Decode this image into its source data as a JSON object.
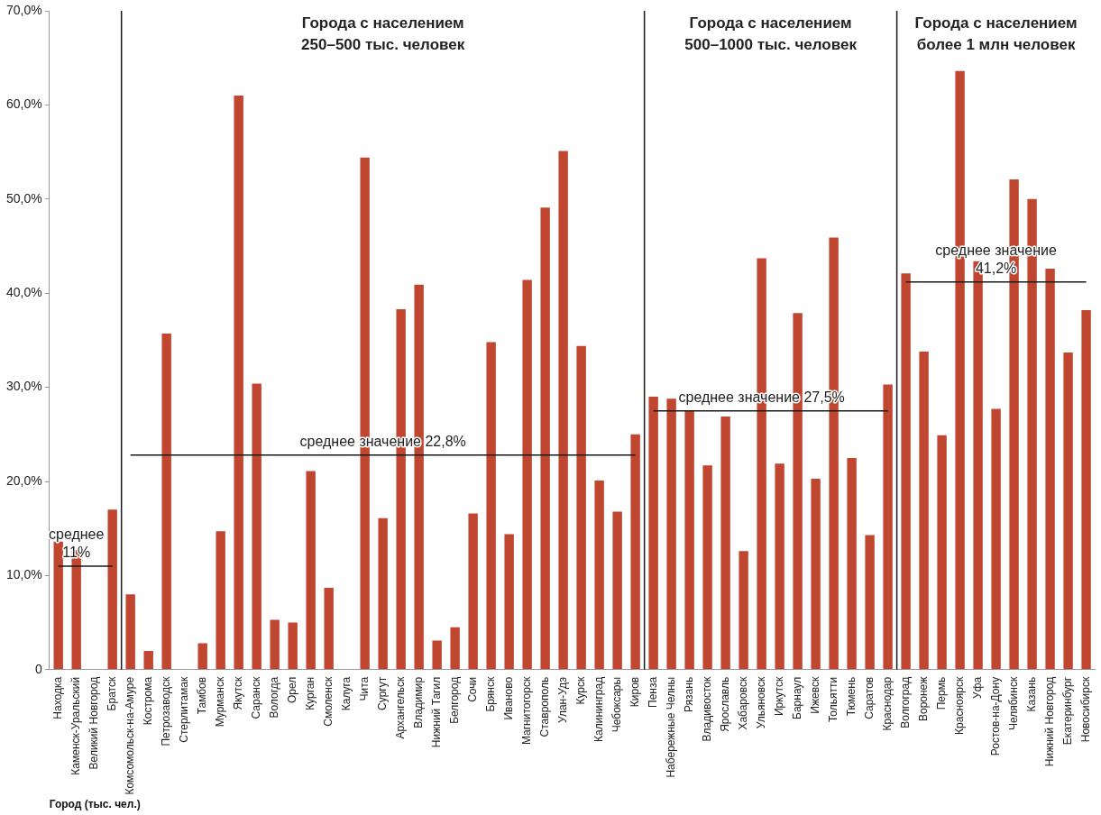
{
  "chart_data": {
    "type": "bar",
    "xlabel": "Город (тыс. чел.)",
    "categories": [
      "Находка",
      "Каменск-Уральский",
      "Великий Новгород",
      "Братск",
      "Комсомольск-на-Амуре",
      "Кострома",
      "Петрозаводск",
      "Стерлитамак",
      "Тамбов",
      "Мурманск",
      "Якутск",
      "Саранск",
      "Вологда",
      "Орел",
      "Курган",
      "Смоленск",
      "Калуга",
      "Чита",
      "Сургут",
      "Архангельск",
      "Владимир",
      "Нижний Тагил",
      "Белгород",
      "Сочи",
      "Брянск",
      "Иваново",
      "Магнитогорск",
      "Ставрополь",
      "Улан-Удэ",
      "Курск",
      "Калининград",
      "Чебоксары",
      "Киров",
      "Пенза",
      "Набережные Челны",
      "Рязань",
      "Владивосток",
      "Ярославль",
      "Хабаровск",
      "Ульяновск",
      "Иркутск",
      "Барнаул",
      "Ижевск",
      "Тольятти",
      "Тюмень",
      "Саратов",
      "Краснодар",
      "Волгоград",
      "Воронеж",
      "Пермь",
      "Красноярск",
      "Уфа",
      "Ростов-на-Дону",
      "Челябинск",
      "Казань",
      "Нижний Новгород",
      "Екатеринбург",
      "Новосибирск"
    ],
    "series": [
      {
        "color": "#c0462f",
        "values": [
          13.6,
          12.7,
          0,
          17.0,
          8.0,
          2.0,
          35.7,
          0,
          2.8,
          14.7,
          61.0,
          30.4,
          5.3,
          5.0,
          21.1,
          8.7,
          0,
          54.4,
          16.1,
          38.3,
          40.9,
          3.1,
          4.5,
          16.6,
          34.8,
          14.4,
          41.4,
          49.1,
          55.1,
          34.4,
          20.1,
          16.8,
          25.0,
          29.0,
          28.8,
          27.5,
          21.7,
          26.9,
          12.6,
          43.7,
          21.9,
          37.9,
          20.3,
          45.9,
          22.5,
          14.3,
          30.3,
          42.1,
          33.8,
          24.9,
          63.6,
          43.4,
          27.7,
          52.1,
          50.0,
          42.6,
          33.7,
          38.2
        ]
      },
      {
        "type": "line",
        "color": "#1a1a1a",
        "values": [
          11,
          11,
          11,
          11,
          null,
          null,
          null,
          null,
          null,
          null,
          null,
          null,
          null,
          null,
          null,
          null,
          null,
          null,
          null,
          null,
          null,
          null,
          null,
          null,
          null,
          null,
          null,
          null,
          null,
          null,
          null,
          null,
          null,
          null,
          null,
          null,
          null,
          null,
          null,
          null,
          null,
          null,
          null,
          null,
          null,
          null,
          null,
          null,
          null,
          null,
          null,
          null,
          null,
          null,
          null,
          null,
          null,
          null
        ]
      },
      {
        "type": "line",
        "color": "#1a1a1a",
        "values": [
          null,
          null,
          null,
          null,
          22.8,
          22.8,
          22.8,
          22.8,
          22.8,
          22.8,
          22.8,
          22.8,
          22.8,
          22.8,
          22.8,
          22.8,
          22.8,
          22.8,
          22.8,
          22.8,
          22.8,
          22.8,
          22.8,
          22.8,
          22.8,
          22.8,
          22.8,
          22.8,
          22.8,
          22.8,
          22.8,
          22.8,
          22.8,
          null,
          null,
          null,
          null,
          null,
          null,
          null,
          null,
          null,
          null,
          null,
          null,
          null,
          null,
          null,
          null,
          null,
          null,
          null,
          null,
          null,
          null,
          null,
          null,
          null
        ]
      },
      {
        "type": "line",
        "color": "#1a1a1a",
        "values": [
          null,
          null,
          null,
          null,
          null,
          null,
          null,
          null,
          null,
          null,
          null,
          null,
          null,
          null,
          null,
          null,
          null,
          null,
          null,
          null,
          null,
          null,
          null,
          null,
          null,
          null,
          null,
          null,
          null,
          null,
          null,
          null,
          null,
          27.5,
          27.5,
          27.5,
          27.5,
          27.5,
          27.5,
          27.5,
          27.5,
          27.5,
          27.5,
          27.5,
          27.5,
          27.5,
          27.5,
          null,
          null,
          null,
          null,
          null,
          null,
          null,
          null,
          null,
          null,
          null
        ]
      },
      {
        "type": "line",
        "color": "#1a1a1a",
        "values": [
          null,
          null,
          null,
          null,
          null,
          null,
          null,
          null,
          null,
          null,
          null,
          null,
          null,
          null,
          null,
          null,
          null,
          null,
          null,
          null,
          null,
          null,
          null,
          null,
          null,
          null,
          null,
          null,
          null,
          null,
          null,
          null,
          null,
          null,
          null,
          null,
          null,
          null,
          null,
          null,
          null,
          null,
          null,
          null,
          null,
          null,
          null,
          41.2,
          41.2,
          41.2,
          41.2,
          41.2,
          41.2,
          41.2,
          41.2,
          41.2,
          41.2,
          41.2
        ]
      }
    ],
    "ylim": [
      0,
      70
    ],
    "yticks": [
      0,
      {
        "value": 10,
        "label": "10,0%"
      },
      {
        "value": 20,
        "label": "20,0%"
      },
      {
        "value": 30,
        "label": "30,0%"
      },
      {
        "value": 40,
        "label": "40,0%"
      },
      {
        "value": 50,
        "label": "50,0%"
      },
      {
        "value": 60,
        "label": "60,0%"
      },
      {
        "value": 70,
        "label": "70,0%"
      }
    ],
    "ref_lines": [
      {
        "axis": "x",
        "value": "Комсомольск-на-Амуре",
        "color": "#1a1a1a"
      },
      {
        "axis": "x",
        "value": "Пенза",
        "color": "#1a1a1a"
      },
      {
        "axis": "x",
        "value": "Волгоград",
        "color": "#1a1a1a"
      }
    ],
    "annotations": [
      "Города с населением\n250–500 тыс. человек",
      "Города с населением\n500–1000 тыс. человек",
      "Города с населением\nболее 1 млн человек",
      {
        "text": "среднее\n11%",
        "x": "Каменск-Уральский",
        "y": 11
      },
      {
        "text": "среднее значение 22,8%",
        "x": "Сургут",
        "y": 22.8
      },
      {
        "text": "среднее значение 27,5%",
        "x": "Ульяновск",
        "y": 27.5
      },
      {
        "text": "среднее значение\n41,2%",
        "x": "Ростов-на-Дону",
        "y": 41.2
      }
    ],
    "grid": false,
    "legend": false,
    "marker": "none"
  }
}
